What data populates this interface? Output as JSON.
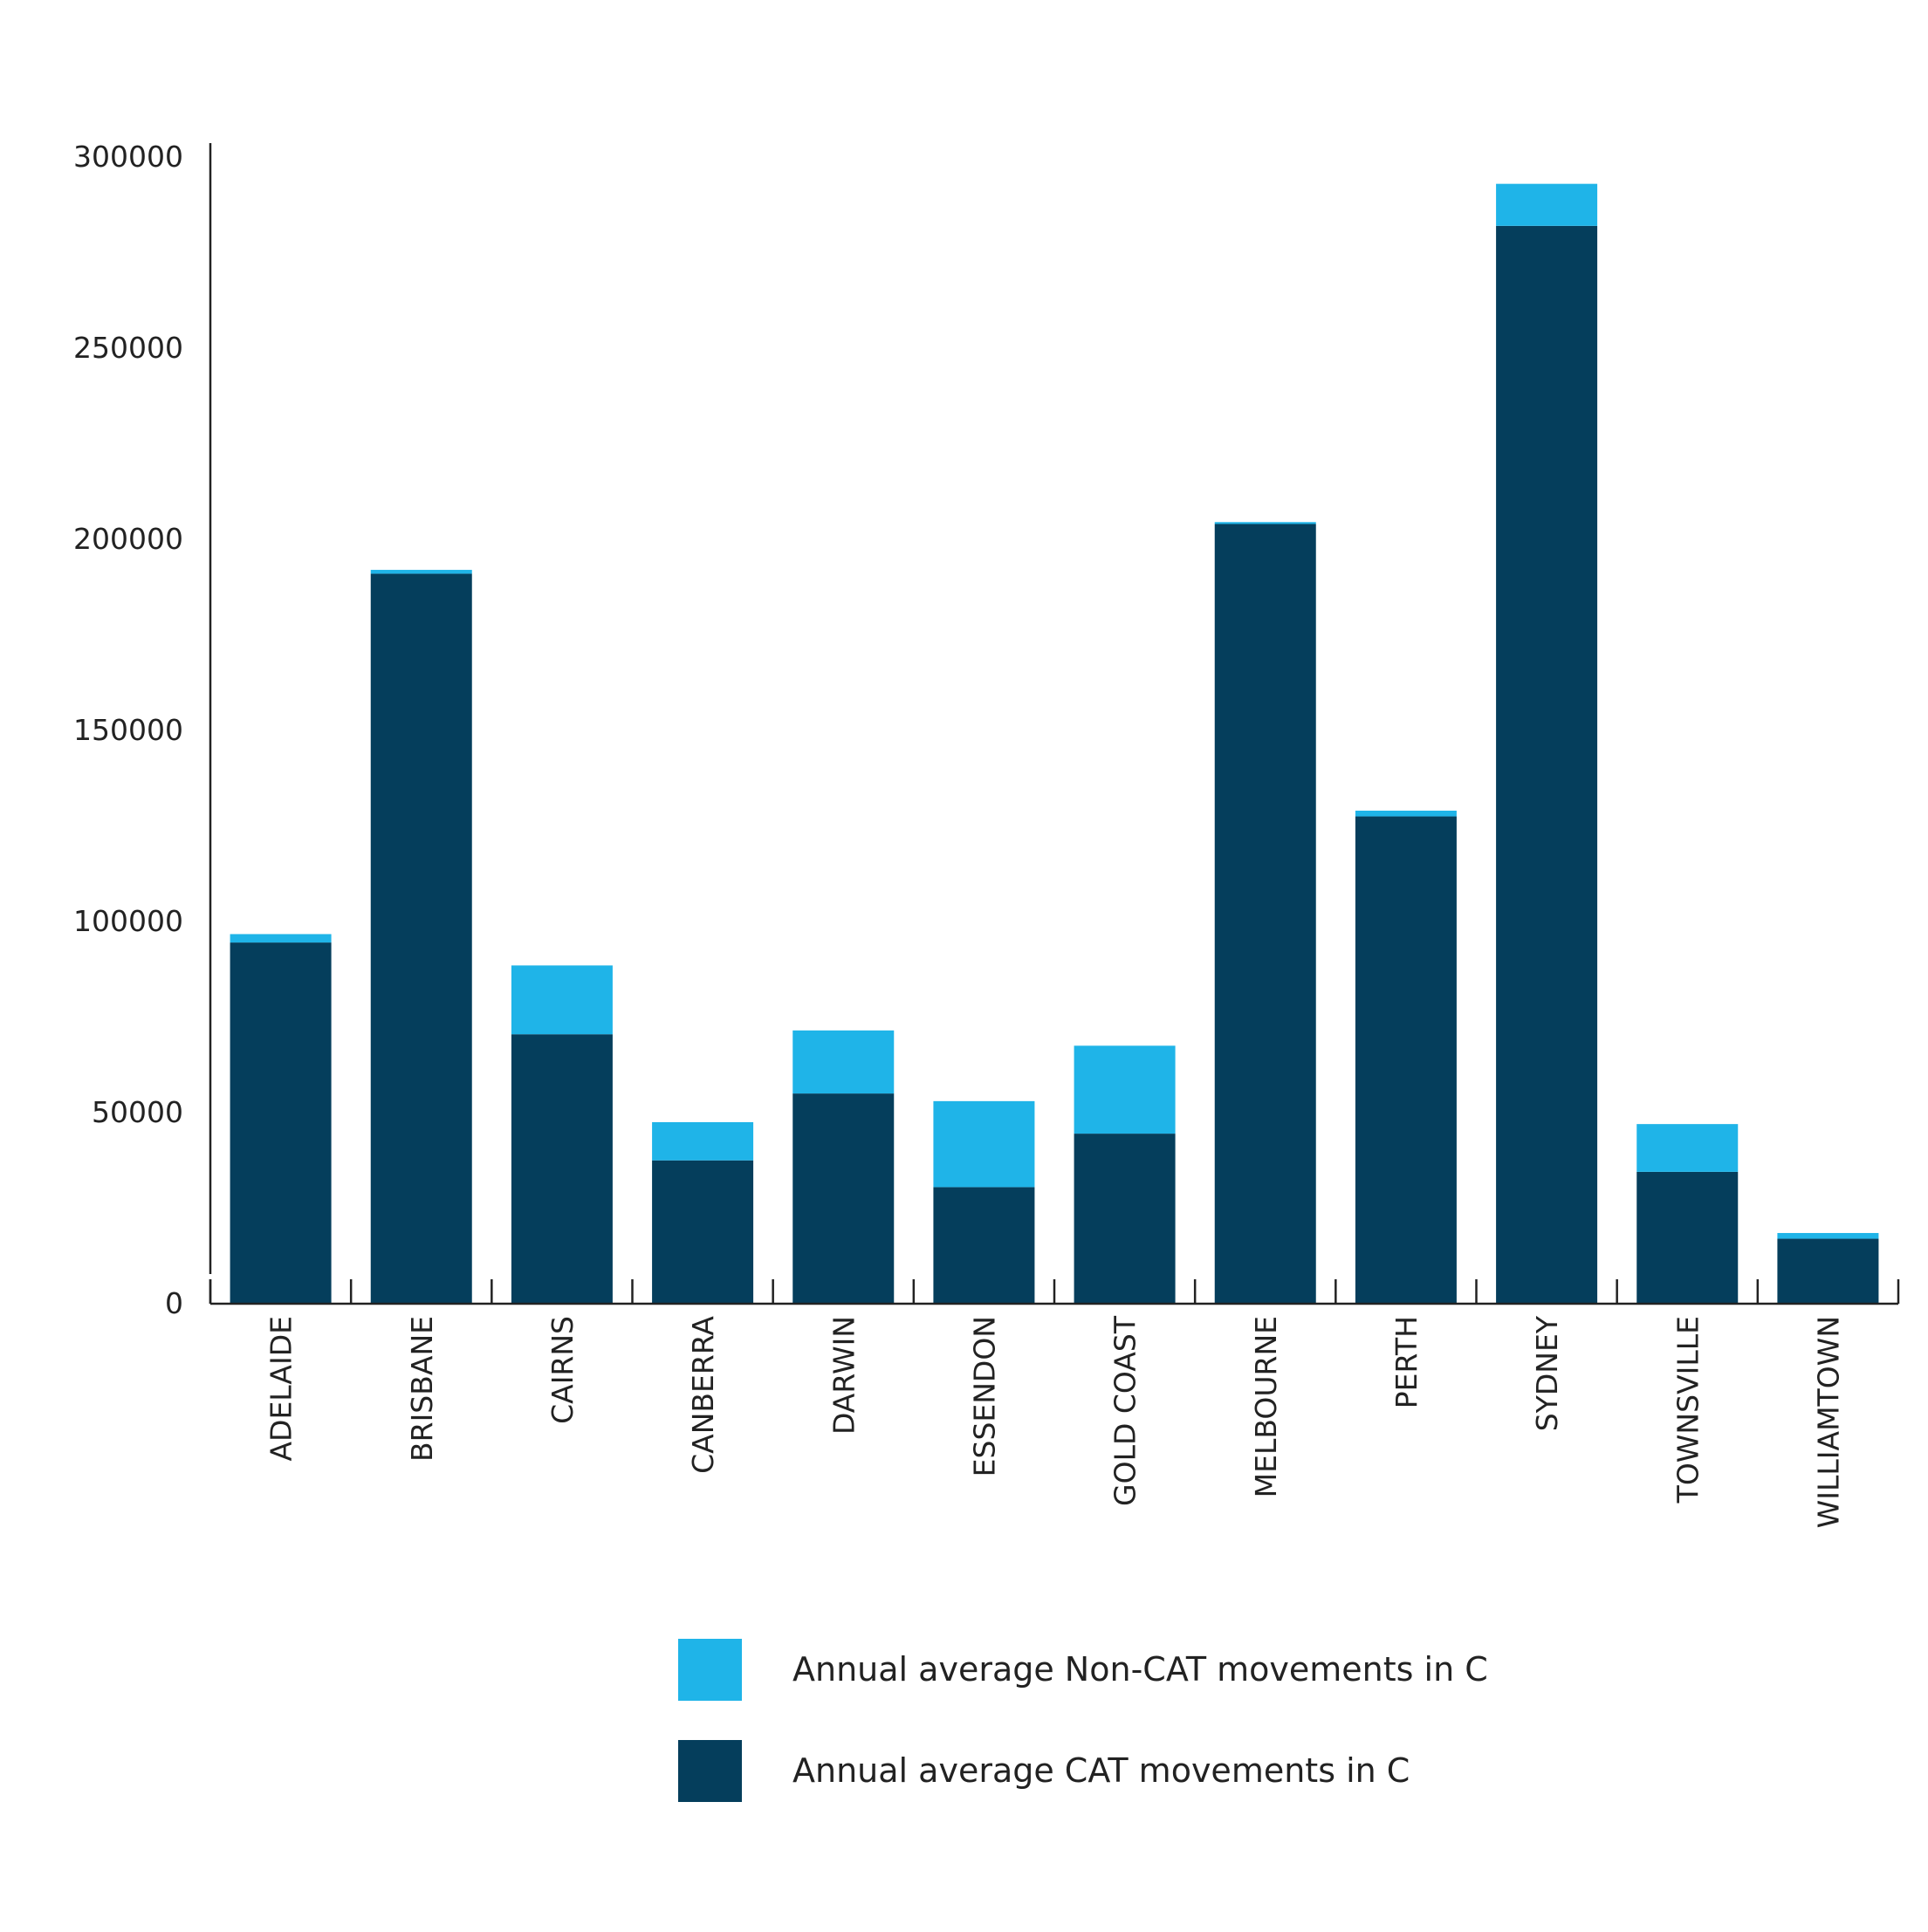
{
  "chart_data": {
    "type": "bar",
    "stacked": true,
    "title": "",
    "xlabel": "",
    "ylabel": "",
    "ylim": [
      0,
      300000
    ],
    "yticks": [
      0,
      50000,
      100000,
      150000,
      200000,
      250000,
      300000
    ],
    "grid": false,
    "legend_position": "bottom-center",
    "categories": [
      "ADELAIDE",
      "BRISBANE",
      "CAIRNS",
      "CANBERRA",
      "DARWIN",
      "ESSENDON",
      "GOLD COAST",
      "MELBOURNE",
      "PERTH",
      "SYDNEY",
      "TOWNSVILLE",
      "WILLIAMTOWN"
    ],
    "series": [
      {
        "name": "Annual average CAT movements in C",
        "color": "#053e5c",
        "values": [
          94500,
          191000,
          70500,
          37500,
          55000,
          30500,
          44500,
          204000,
          127500,
          282000,
          34500,
          17000
        ]
      },
      {
        "name": "Annual average Non-CAT movements in C",
        "color": "#1fb4e8",
        "values": [
          2200,
          1000,
          18000,
          10000,
          16500,
          22500,
          23000,
          500,
          1500,
          11000,
          12500,
          1500
        ]
      }
    ],
    "legend_order": [
      "Annual average Non-CAT movements in C",
      "Annual average CAT movements in C"
    ]
  }
}
